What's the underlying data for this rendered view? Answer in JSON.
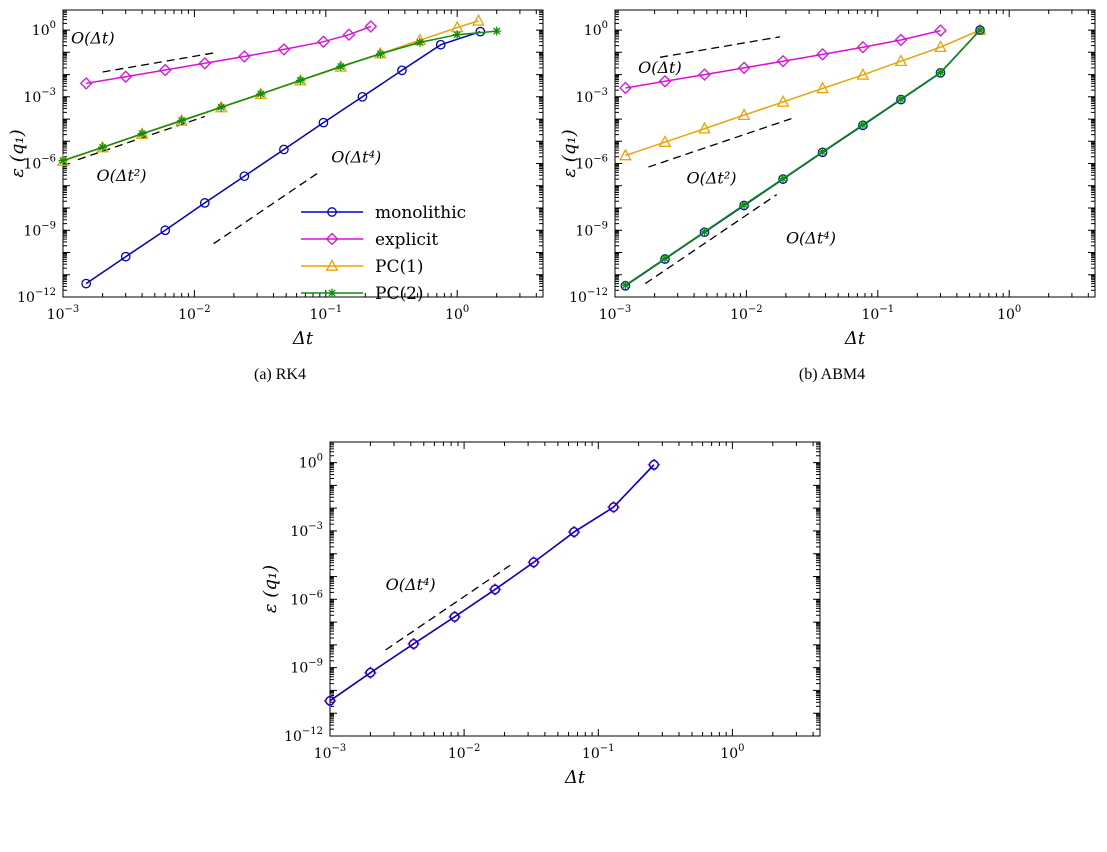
{
  "chart_data": [
    {
      "id": "plot-a",
      "type": "line",
      "title": "(a) RK4",
      "xlabel": "Δt",
      "ylabel": "ε (q₁)",
      "xscale": "log",
      "yscale": "log",
      "xlim": [
        0.001,
        4.5
      ],
      "ylim": [
        1e-12,
        8
      ],
      "grid": false,
      "x_label_exps": [
        -3,
        -2,
        -1,
        0
      ],
      "y_label_exps": [
        0,
        -3,
        -6,
        -9,
        -12
      ],
      "legend": {
        "position": "inside-center-right",
        "entries": [
          "monolithic",
          "explicit",
          "PC(1)",
          "PC(2)"
        ]
      },
      "series": [
        {
          "name": "monolithic",
          "color": "#0000cc",
          "marker": "circle",
          "x": [
            0.0015,
            0.003,
            0.006,
            0.012,
            0.024,
            0.048,
            0.096,
            0.19,
            0.38,
            0.75,
            1.5
          ],
          "y": [
            4e-12,
            6.5e-11,
            1e-09,
            1.7e-08,
            2.7e-07,
            4.3e-06,
            6.9e-05,
            0.001,
            0.0155,
            0.22,
            0.85
          ]
        },
        {
          "name": "explicit",
          "color": "#dc0fdc",
          "marker": "diamond",
          "x": [
            0.0015,
            0.003,
            0.006,
            0.012,
            0.024,
            0.048,
            0.096,
            0.15,
            0.22
          ],
          "y": [
            0.004,
            0.008,
            0.016,
            0.032,
            0.065,
            0.135,
            0.3,
            0.62,
            1.45
          ]
        },
        {
          "name": "PC(1)",
          "color": "#f0a000",
          "marker": "triangle",
          "x": [
            0.001,
            0.002,
            0.004,
            0.008,
            0.016,
            0.032,
            0.064,
            0.13,
            0.26,
            0.52,
            1.0,
            1.45
          ],
          "y": [
            1.3e-06,
            5.2e-06,
            2.1e-05,
            8.3e-05,
            0.00033,
            0.0013,
            0.0053,
            0.022,
            0.087,
            0.35,
            1.3,
            2.6
          ]
        },
        {
          "name": "PC(2)",
          "color": "#0a8f0a",
          "marker": "star",
          "x": [
            0.001,
            0.002,
            0.004,
            0.008,
            0.016,
            0.032,
            0.064,
            0.13,
            0.26,
            0.52,
            1.0,
            2.0
          ],
          "y": [
            1.35e-06,
            5.4e-06,
            2.2e-05,
            8.6e-05,
            0.00034,
            0.00135,
            0.0055,
            0.023,
            0.085,
            0.28,
            0.62,
            0.9
          ]
        }
      ],
      "guides": [
        {
          "label": "O(Δt)",
          "from": [
            0.002,
            0.013
          ],
          "to": [
            0.015,
            0.1
          ],
          "label_at": [
            0.00115,
            0.25
          ]
        },
        {
          "label": "O(Δt²)",
          "from": [
            0.0013,
            1.5e-06
          ],
          "to": [
            0.012,
            0.00013
          ],
          "label_at": [
            0.0018,
            1.6e-07
          ]
        },
        {
          "label": "O(Δt⁴)",
          "from": [
            0.014,
            2.5e-10
          ],
          "to": [
            0.09,
            4.3e-07
          ],
          "label_at": [
            0.11,
            1.1e-06
          ]
        }
      ]
    },
    {
      "id": "plot-b",
      "type": "line",
      "title": "(b) ABM4",
      "xlabel": "Δt",
      "ylabel": "ε (q₁)",
      "xscale": "log",
      "yscale": "log",
      "xlim": [
        0.001,
        4.5
      ],
      "ylim": [
        1e-12,
        8
      ],
      "grid": false,
      "x_label_exps": [
        -3,
        -2,
        -1,
        0
      ],
      "y_label_exps": [
        0,
        -3,
        -6,
        -9,
        -12
      ],
      "series": [
        {
          "name": "explicit",
          "color": "#dc0fdc",
          "marker": "diamond",
          "x": [
            0.0012,
            0.0024,
            0.0048,
            0.0096,
            0.019,
            0.038,
            0.077,
            0.15,
            0.3
          ],
          "y": [
            0.0025,
            0.005,
            0.01,
            0.02,
            0.04,
            0.081,
            0.17,
            0.36,
            0.95
          ]
        },
        {
          "name": "PC(1)",
          "color": "#f0a000",
          "marker": "triangle",
          "x": [
            0.0012,
            0.0024,
            0.0048,
            0.0096,
            0.019,
            0.038,
            0.077,
            0.15,
            0.3,
            0.6
          ],
          "y": [
            2.3e-06,
            9.2e-06,
            3.7e-05,
            0.00015,
            0.00059,
            0.0024,
            0.0097,
            0.04,
            0.17,
            1.0
          ]
        },
        {
          "name": "monolithic",
          "color": "#0000cc",
          "marker": "circle",
          "x": [
            0.0012,
            0.0024,
            0.0048,
            0.0096,
            0.019,
            0.038,
            0.077,
            0.15,
            0.3,
            0.6
          ],
          "y": [
            3.2e-12,
            5.1e-11,
            8.2e-10,
            1.3e-08,
            2e-07,
            3.2e-06,
            5.2e-05,
            0.00075,
            0.012,
            1.0
          ]
        },
        {
          "name": "PC(2)",
          "color": "#0a8f0a",
          "marker": "star",
          "x": [
            0.0012,
            0.0024,
            0.0048,
            0.0096,
            0.019,
            0.038,
            0.077,
            0.15,
            0.3,
            0.6
          ],
          "y": [
            3.4e-12,
            5.4e-11,
            8.6e-10,
            1.4e-08,
            2.1e-07,
            3.4e-06,
            5.5e-05,
            0.00079,
            0.0125,
            1.0
          ]
        }
      ],
      "guides": [
        {
          "label": "O(Δt)",
          "from": [
            0.0022,
            0.06
          ],
          "to": [
            0.018,
            0.5
          ],
          "label_at": [
            0.0015,
            0.012
          ]
        },
        {
          "label": "O(Δt²)",
          "from": [
            0.0018,
            7e-07
          ],
          "to": [
            0.022,
            0.000105
          ],
          "label_at": [
            0.0035,
            1.3e-07
          ]
        },
        {
          "label": "O(Δt⁴)",
          "from": [
            0.0017,
            4e-12
          ],
          "to": [
            0.017,
            4e-08
          ],
          "label_at": [
            0.02,
            2.5e-10
          ]
        }
      ]
    },
    {
      "id": "plot-c",
      "type": "line",
      "xlabel": "Δt",
      "ylabel": "ε (q₁)",
      "xscale": "log",
      "yscale": "log",
      "xlim": [
        0.001,
        4.5
      ],
      "ylim": [
        1e-12,
        8
      ],
      "grid": false,
      "x_label_exps": [
        -3,
        -2,
        -1,
        0
      ],
      "y_label_exps": [
        0,
        -3,
        -6,
        -9,
        -12
      ],
      "series": [
        {
          "name": "explicit",
          "color": "#dc0fdc",
          "marker": "diamond",
          "x": [
            0.001,
            0.002,
            0.0042,
            0.0085,
            0.017,
            0.033,
            0.066,
            0.13,
            0.26
          ],
          "y": [
            3.5e-11,
            6e-10,
            1.1e-08,
            1.7e-07,
            2.7e-06,
            4.2e-05,
            0.0009,
            0.011,
            0.8
          ]
        },
        {
          "name": "monolithic",
          "color": "#0000cc",
          "marker": "circle",
          "x": [
            0.001,
            0.002,
            0.0042,
            0.0085,
            0.017,
            0.033,
            0.066,
            0.13,
            0.26
          ],
          "y": [
            3.5e-11,
            6e-10,
            1.1e-08,
            1.7e-07,
            2.7e-06,
            4.2e-05,
            0.0009,
            0.011,
            0.8
          ]
        }
      ],
      "guides": [
        {
          "label": "O(Δt⁴)",
          "from": [
            0.0026,
            6e-09
          ],
          "to": [
            0.022,
            3.1e-05
          ],
          "label_at": [
            0.0026,
            2.5e-06
          ]
        }
      ]
    }
  ]
}
